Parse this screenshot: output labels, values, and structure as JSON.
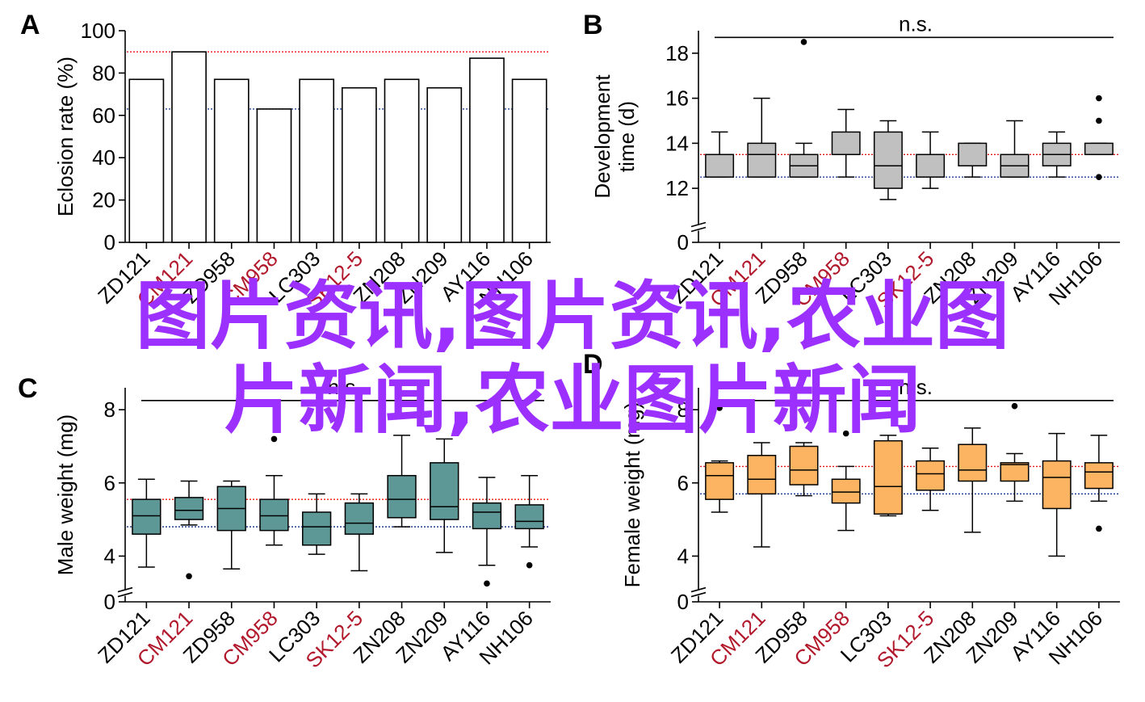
{
  "colors": {
    "axis": "#000000",
    "red_ref": "#e31a1c",
    "blue_ref": "#1f3f8f",
    "label_red": "#b2182b",
    "watermark": "#9b30ff",
    "box_B": "#c0c0c0",
    "box_C": "#5e9896",
    "box_D": "#fdb462"
  },
  "watermark": {
    "line1": "图片资讯,图片资讯,农业图",
    "line2": "片新闻,农业图片新闻"
  },
  "chart_data": [
    {
      "panel": "A",
      "type": "bar",
      "ylabel": "Eclosion rate (%)",
      "ylim": [
        0,
        100
      ],
      "yticks": [
        0,
        20,
        40,
        60,
        80,
        100
      ],
      "categories": [
        "ZD121",
        "CM121",
        "ZD958",
        "CM958",
        "LC303",
        "SK12-5",
        "ZN208",
        "ZN209",
        "AY116",
        "NH106"
      ],
      "highlight": [
        "CM121",
        "CM958",
        "SK12-5"
      ],
      "values": [
        77,
        90,
        77,
        63,
        77,
        73,
        77,
        73,
        87,
        77
      ],
      "ref_red": 90,
      "ref_blue": 63
    },
    {
      "panel": "B",
      "type": "box",
      "ylabel": [
        "Development",
        "time (d)"
      ],
      "ylim": [
        0,
        19
      ],
      "yticks": [
        0,
        12,
        14,
        16,
        18
      ],
      "axis_break": true,
      "break_from": 11,
      "zero_gap": 1.4,
      "categories": [
        "ZD121",
        "CM121",
        "ZD958",
        "CM958",
        "LC303",
        "SK12-5",
        "ZN208",
        "ZN209",
        "AY116",
        "NH106"
      ],
      "highlight": [
        "CM121",
        "CM958",
        "SK12-5"
      ],
      "boxes": [
        {
          "lo": 12.5,
          "q1": 12.5,
          "med": 13.5,
          "q3": 13.5,
          "hi": 14.5,
          "out": []
        },
        {
          "lo": 12.5,
          "q1": 12.5,
          "med": 13.5,
          "q3": 14,
          "hi": 16,
          "out": []
        },
        {
          "lo": 12.5,
          "q1": 12.5,
          "med": 13,
          "q3": 13.5,
          "hi": 14,
          "out": [
            18.5
          ]
        },
        {
          "lo": 12.5,
          "q1": 13.5,
          "med": 13.5,
          "q3": 14.5,
          "hi": 15.5,
          "out": []
        },
        {
          "lo": 11.5,
          "q1": 12,
          "med": 13,
          "q3": 14.5,
          "hi": 15,
          "out": []
        },
        {
          "lo": 12,
          "q1": 12.5,
          "med": 13.5,
          "q3": 13.5,
          "hi": 14.5,
          "out": []
        },
        {
          "lo": 12.5,
          "q1": 13,
          "med": 13,
          "q3": 14,
          "hi": 14,
          "out": []
        },
        {
          "lo": 12.5,
          "q1": 12.5,
          "med": 13,
          "q3": 13.5,
          "hi": 15,
          "out": []
        },
        {
          "lo": 12.5,
          "q1": 13,
          "med": 13.5,
          "q3": 14,
          "hi": 14.5,
          "out": []
        },
        {
          "lo": 13.5,
          "q1": 13.5,
          "med": 13.5,
          "q3": 14,
          "hi": 14,
          "out": [
            16,
            15,
            12.5
          ]
        }
      ],
      "ref_red": 13.5,
      "ref_blue": 12.5,
      "sig_label": "n.s.",
      "sig_y": 18.7
    },
    {
      "panel": "C",
      "type": "box",
      "ylabel": "Male weight (mg)",
      "ylim": [
        0,
        8.6
      ],
      "yticks": [
        0,
        4,
        6,
        8
      ],
      "axis_break": true,
      "break_from": 3.3,
      "zero_gap": 0.55,
      "categories": [
        "ZD121",
        "CM121",
        "ZD958",
        "CM958",
        "LC303",
        "SK12-5",
        "ZN208",
        "ZN209",
        "AY116",
        "NH106"
      ],
      "highlight": [
        "CM121",
        "CM958",
        "SK12-5"
      ],
      "boxes": [
        {
          "lo": 3.7,
          "q1": 4.6,
          "med": 5.1,
          "q3": 5.55,
          "hi": 6.1,
          "out": []
        },
        {
          "lo": 4.85,
          "q1": 5.0,
          "med": 5.25,
          "q3": 5.6,
          "hi": 6.05,
          "out": [
            3.45
          ]
        },
        {
          "lo": 3.65,
          "q1": 4.7,
          "med": 5.3,
          "q3": 5.9,
          "hi": 6.05,
          "out": []
        },
        {
          "lo": 4.3,
          "q1": 4.7,
          "med": 5.1,
          "q3": 5.55,
          "hi": 6.2,
          "out": [
            7.2
          ]
        },
        {
          "lo": 4.05,
          "q1": 4.3,
          "med": 4.8,
          "q3": 5.2,
          "hi": 5.7,
          "out": []
        },
        {
          "lo": 3.6,
          "q1": 4.6,
          "med": 4.9,
          "q3": 5.45,
          "hi": 5.7,
          "out": []
        },
        {
          "lo": 4.8,
          "q1": 5.05,
          "med": 5.55,
          "q3": 6.2,
          "hi": 7.3,
          "out": []
        },
        {
          "lo": 4.1,
          "q1": 5.0,
          "med": 5.35,
          "q3": 6.55,
          "hi": 7.2,
          "out": []
        },
        {
          "lo": 3.75,
          "q1": 4.75,
          "med": 5.2,
          "q3": 5.45,
          "hi": 6.15,
          "out": [
            3.25
          ]
        },
        {
          "lo": 4.25,
          "q1": 4.75,
          "med": 4.95,
          "q3": 5.4,
          "hi": 6.2,
          "out": [
            3.75
          ]
        }
      ],
      "ref_red": 5.55,
      "ref_blue": 4.8,
      "sig_label": "n.s.",
      "sig_y": 8.25
    },
    {
      "panel": "D",
      "type": "box",
      "ylabel": "Female weight (mg)",
      "ylim": [
        0,
        8.6
      ],
      "yticks": [
        0,
        4,
        6,
        8
      ],
      "axis_break": true,
      "break_from": 3.3,
      "zero_gap": 0.55,
      "categories": [
        "ZD121",
        "CM121",
        "ZD958",
        "CM958",
        "LC303",
        "SK12-5",
        "ZN208",
        "ZN209",
        "AY116",
        "NH106"
      ],
      "highlight": [
        "CM121",
        "CM958",
        "SK12-5"
      ],
      "boxes": [
        {
          "lo": 5.2,
          "q1": 5.55,
          "med": 6.2,
          "q3": 6.55,
          "hi": 6.6,
          "out": [
            8.05
          ]
        },
        {
          "lo": 4.25,
          "q1": 5.7,
          "med": 6.1,
          "q3": 6.75,
          "hi": 7.1,
          "out": []
        },
        {
          "lo": 5.65,
          "q1": 5.95,
          "med": 6.35,
          "q3": 7.0,
          "hi": 7.1,
          "out": []
        },
        {
          "lo": 4.7,
          "q1": 5.45,
          "med": 5.75,
          "q3": 6.1,
          "hi": 6.45,
          "out": [
            7.35
          ]
        },
        {
          "lo": 5.1,
          "q1": 5.15,
          "med": 5.9,
          "q3": 7.15,
          "hi": 7.3,
          "out": []
        },
        {
          "lo": 5.25,
          "q1": 5.8,
          "med": 6.25,
          "q3": 6.6,
          "hi": 6.95,
          "out": []
        },
        {
          "lo": 4.65,
          "q1": 6.05,
          "med": 6.35,
          "q3": 7.05,
          "hi": 7.5,
          "out": []
        },
        {
          "lo": 5.5,
          "q1": 6.05,
          "med": 6.5,
          "q3": 6.55,
          "hi": 6.8,
          "out": [
            8.1
          ]
        },
        {
          "lo": 4.0,
          "q1": 5.3,
          "med": 6.15,
          "q3": 6.6,
          "hi": 7.35,
          "out": []
        },
        {
          "lo": 5.5,
          "q1": 5.85,
          "med": 6.3,
          "q3": 6.55,
          "hi": 7.3,
          "out": [
            4.75
          ]
        }
      ],
      "ref_red": 6.45,
      "ref_blue": 5.7,
      "sig_label": "n.s.",
      "sig_y": 8.25
    }
  ]
}
